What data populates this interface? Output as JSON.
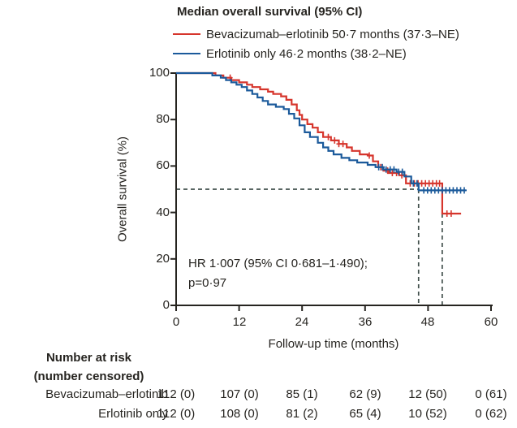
{
  "figure": {
    "legend": {
      "title": "Median overall survival (95% CI)",
      "entries": [
        {
          "label": "Bevacizumab–erlotinib 50·7 months (37·3–NE)",
          "color": "#d6352c"
        },
        {
          "label": "Erlotinib only 46·2 months (38·2–NE)",
          "color": "#1b5a9b"
        }
      ]
    },
    "colors": {
      "bevacizumab_erlotinib": "#d6352c",
      "erlotinib_only": "#1b5a9b",
      "dashed_guides": "#42504d",
      "axis": "#262420",
      "text": "#262420"
    }
  },
  "chart_data": {
    "type": "line",
    "subtype": "kaplan-meier-step",
    "title": "Median overall survival (95% CI)",
    "xlabel": "Follow-up time (months)",
    "ylabel": "Overall survival (%)",
    "xlim": [
      0,
      60
    ],
    "ylim": [
      0,
      100
    ],
    "x_ticks": [
      0,
      12,
      24,
      36,
      48,
      60
    ],
    "y_ticks": [
      0,
      20,
      40,
      60,
      80,
      100
    ],
    "grid": false,
    "legend_position": "top-left",
    "annotation": {
      "line1": "HR 1·007 (95% CI 0·681–1·490);",
      "line2": "p=0·97"
    },
    "guides": {
      "horizontal_survival_pct": 50,
      "median_vlines_months": [
        46.2,
        50.7
      ]
    },
    "series": [
      {
        "name": "Bevacizumab–erlotinib",
        "color": "#d6352c",
        "median_months": 50.7,
        "ci_95": "37·3–NE",
        "points": [
          [
            0,
            100
          ],
          [
            7.5,
            100
          ],
          [
            7.5,
            99
          ],
          [
            9,
            99
          ],
          [
            9,
            98
          ],
          [
            10.5,
            98
          ],
          [
            10.5,
            97
          ],
          [
            12,
            97
          ],
          [
            12,
            96
          ],
          [
            13.5,
            96
          ],
          [
            13.5,
            95
          ],
          [
            14.5,
            95
          ],
          [
            14.5,
            94
          ],
          [
            16,
            94
          ],
          [
            16,
            93
          ],
          [
            17.5,
            93
          ],
          [
            17.5,
            92
          ],
          [
            18.5,
            92
          ],
          [
            18.5,
            91
          ],
          [
            20,
            91
          ],
          [
            20,
            90
          ],
          [
            21,
            90
          ],
          [
            21,
            88.5
          ],
          [
            22,
            88.5
          ],
          [
            22,
            86.5
          ],
          [
            23,
            86.5
          ],
          [
            23,
            84
          ],
          [
            23.5,
            84
          ],
          [
            23.5,
            82
          ],
          [
            24,
            82
          ],
          [
            24,
            80
          ],
          [
            25,
            80
          ],
          [
            25,
            78
          ],
          [
            26,
            78
          ],
          [
            26,
            76.5
          ],
          [
            27,
            76.5
          ],
          [
            27,
            74.5
          ],
          [
            28,
            74.5
          ],
          [
            28,
            72.5
          ],
          [
            29.5,
            72.5
          ],
          [
            29.5,
            71
          ],
          [
            31,
            71
          ],
          [
            31,
            69.5
          ],
          [
            32.5,
            69.5
          ],
          [
            32.5,
            68
          ],
          [
            33.5,
            68
          ],
          [
            33.5,
            66.5
          ],
          [
            35,
            66.5
          ],
          [
            35,
            65
          ],
          [
            36.5,
            65
          ],
          [
            36.5,
            64.5
          ],
          [
            37.5,
            64.5
          ],
          [
            37.5,
            62
          ],
          [
            38.5,
            62
          ],
          [
            38.5,
            59.5
          ],
          [
            39.5,
            59.5
          ],
          [
            39.5,
            58
          ],
          [
            40.5,
            58
          ],
          [
            40.5,
            57
          ],
          [
            42.5,
            57
          ],
          [
            42.5,
            56
          ],
          [
            43.8,
            56
          ],
          [
            43.8,
            52.5
          ],
          [
            50.7,
            52.5
          ],
          [
            50.7,
            39.5
          ],
          [
            54.3,
            39.5
          ]
        ],
        "censor_times": [
          10.3,
          29,
          30.2,
          31,
          31.8,
          36.8,
          39.0,
          40.3,
          41.2,
          42.0,
          43.0,
          44.6,
          45.4,
          46.1,
          46.8,
          47.5,
          48.2,
          48.9,
          49.6,
          50.2,
          51.6,
          52.4
        ]
      },
      {
        "name": "Erlotinib only",
        "color": "#1b5a9b",
        "median_months": 46.2,
        "ci_95": "38·2–NE",
        "points": [
          [
            0,
            100
          ],
          [
            6.9,
            100
          ],
          [
            6.9,
            99
          ],
          [
            8.5,
            99
          ],
          [
            8.5,
            98
          ],
          [
            9.5,
            98
          ],
          [
            9.5,
            97
          ],
          [
            10.5,
            97
          ],
          [
            10.5,
            96
          ],
          [
            11.5,
            96
          ],
          [
            11.5,
            95
          ],
          [
            12.5,
            95
          ],
          [
            12.5,
            94
          ],
          [
            13.5,
            94
          ],
          [
            13.5,
            92.5
          ],
          [
            14.5,
            92.5
          ],
          [
            14.5,
            91
          ],
          [
            15.5,
            91
          ],
          [
            15.5,
            89.5
          ],
          [
            16.5,
            89.5
          ],
          [
            16.5,
            88
          ],
          [
            17.5,
            88
          ],
          [
            17.5,
            86.5
          ],
          [
            19,
            86.5
          ],
          [
            19,
            85.5
          ],
          [
            20.5,
            85.5
          ],
          [
            20.5,
            84.5
          ],
          [
            21.5,
            84.5
          ],
          [
            21.5,
            82.5
          ],
          [
            22.5,
            82.5
          ],
          [
            22.5,
            80.5
          ],
          [
            23.5,
            80.5
          ],
          [
            23.5,
            77.5
          ],
          [
            24.5,
            77.5
          ],
          [
            24.5,
            74.5
          ],
          [
            25.5,
            74.5
          ],
          [
            25.5,
            72.5
          ],
          [
            27,
            72.5
          ],
          [
            27,
            70
          ],
          [
            28,
            70
          ],
          [
            28,
            68
          ],
          [
            29,
            68
          ],
          [
            29,
            66.5
          ],
          [
            30,
            66.5
          ],
          [
            30,
            65
          ],
          [
            31.5,
            65
          ],
          [
            31.5,
            63.5
          ],
          [
            33,
            63.5
          ],
          [
            33,
            62.5
          ],
          [
            34.5,
            62.5
          ],
          [
            34.5,
            61.5
          ],
          [
            36.5,
            61.5
          ],
          [
            36.5,
            60.5
          ],
          [
            38,
            60.5
          ],
          [
            38,
            59.5
          ],
          [
            39.5,
            59.5
          ],
          [
            39.5,
            58.5
          ],
          [
            42,
            58.5
          ],
          [
            42,
            57.5
          ],
          [
            43.5,
            57.5
          ],
          [
            43.5,
            55.5
          ],
          [
            44.8,
            55.5
          ],
          [
            44.8,
            52.5
          ],
          [
            46.2,
            52.5
          ],
          [
            46.2,
            49.5
          ],
          [
            55.3,
            49.5
          ]
        ],
        "censor_times": [
          38.6,
          39.3,
          40.0,
          40.8,
          41.5,
          42.4,
          43.1,
          45.2,
          45.9,
          47.2,
          47.9,
          48.6,
          49.3,
          50.0,
          50.7,
          51.4,
          52.1,
          52.8,
          53.5,
          54.2,
          54.9
        ]
      }
    ]
  },
  "risk_table": {
    "header_line1": "Number at risk",
    "header_line2": "(number censored)",
    "time_points": [
      0,
      12,
      24,
      36,
      48,
      60
    ],
    "rows": [
      {
        "label": "Bevacizumab–erlotinib",
        "values": [
          "112 (0)",
          "107 (0)",
          "85 (1)",
          "62 (9)",
          "12 (50)",
          "0 (61)"
        ]
      },
      {
        "label": "Erlotinib only",
        "values": [
          "112 (0)",
          "108 (0)",
          "81 (2)",
          "65 (4)",
          "10 (52)",
          "0 (62)"
        ]
      }
    ]
  }
}
